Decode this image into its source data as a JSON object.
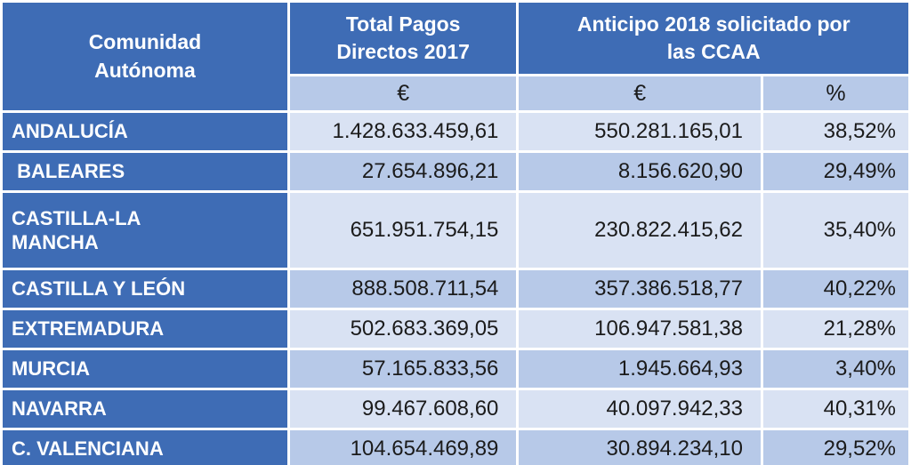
{
  "table": {
    "header": {
      "comunidad": "Comunidad\nAutónoma",
      "total_pagos": "Total Pagos\nDirectos 2017",
      "anticipo": "Anticipo 2018 solicitado por\nlas CCAA"
    },
    "subheader": [
      "€",
      "€",
      "%"
    ],
    "rows": [
      {
        "name": "ANDALUCÍA",
        "total_2017": "1.428.633.459,61",
        "anticipo_2018": "550.281.165,01",
        "pct": "38,52%"
      },
      {
        "name": " BALEARES",
        "total_2017": "27.654.896,21",
        "anticipo_2018": "8.156.620,90",
        "pct": "29,49%"
      },
      {
        "name": "CASTILLA-LA\nMANCHA",
        "total_2017": "651.951.754,15",
        "anticipo_2018": "230.822.415,62",
        "pct": "35,40%"
      },
      {
        "name": "CASTILLA Y LEÓN",
        "total_2017": "888.508.711,54",
        "anticipo_2018": "357.386.518,77",
        "pct": "40,22%"
      },
      {
        "name": "EXTREMADURA",
        "total_2017": "502.683.369,05",
        "anticipo_2018": "106.947.581,38",
        "pct": "21,28%"
      },
      {
        "name": "MURCIA",
        "total_2017": "57.165.833,56",
        "anticipo_2018": "1.945.664,93",
        "pct": "3,40%"
      },
      {
        "name": "NAVARRA",
        "total_2017": "99.467.608,60",
        "anticipo_2018": "40.097.942,33",
        "pct": "40,31%"
      },
      {
        "name": "C. VALENCIANA",
        "total_2017": "104.654.469,89",
        "anticipo_2018": "30.894.234,10",
        "pct": "29,52%"
      }
    ]
  },
  "colors": {
    "header_blue": "#3e6cb5",
    "band_light": "#d9e2f3",
    "band_medium": "#b7c9e8",
    "grid_white": "#ffffff",
    "value_text": "#1b1b1b",
    "header_text": "#ffffff"
  },
  "chart_data": {
    "type": "table",
    "columns": [
      "Comunidad Autónoma",
      "Total Pagos Directos 2017 (€)",
      "Anticipo 2018 solicitado por las CCAA (€)",
      "Anticipo 2018 solicitado por las CCAA (%)"
    ],
    "rows": [
      [
        "ANDALUCÍA",
        "1.428.633.459,61",
        "550.281.165,01",
        "38,52%"
      ],
      [
        "BALEARES",
        "27.654.896,21",
        "8.156.620,90",
        "29,49%"
      ],
      [
        "CASTILLA-LA MANCHA",
        "651.951.754,15",
        "230.822.415,62",
        "35,40%"
      ],
      [
        "CASTILLA Y LEÓN",
        "888.508.711,54",
        "357.386.518,77",
        "40,22%"
      ],
      [
        "EXTREMADURA",
        "502.683.369,05",
        "106.947.581,38",
        "21,28%"
      ],
      [
        "MURCIA",
        "57.165.833,56",
        "1.945.664,93",
        "3,40%"
      ],
      [
        "NAVARRA",
        "99.467.608,60",
        "40.097.942,33",
        "40,31%"
      ],
      [
        "C. VALENCIANA",
        "104.654.469,89",
        "30.894.234,10",
        "29,52%"
      ]
    ],
    "numeric_rows": [
      {
        "name": "ANDALUCÍA",
        "total_2017": 1428633459.61,
        "anticipo_2018": 550281165.01,
        "pct": 38.52
      },
      {
        "name": "BALEARES",
        "total_2017": 27654896.21,
        "anticipo_2018": 8156620.9,
        "pct": 29.49
      },
      {
        "name": "CASTILLA-LA MANCHA",
        "total_2017": 651951754.15,
        "anticipo_2018": 230822415.62,
        "pct": 35.4
      },
      {
        "name": "CASTILLA Y LEÓN",
        "total_2017": 888508711.54,
        "anticipo_2018": 357386518.77,
        "pct": 40.22
      },
      {
        "name": "EXTREMADURA",
        "total_2017": 502683369.05,
        "anticipo_2018": 106947581.38,
        "pct": 21.28
      },
      {
        "name": "MURCIA",
        "total_2017": 57165833.56,
        "anticipo_2018": 1945664.93,
        "pct": 3.4
      },
      {
        "name": "NAVARRA",
        "total_2017": 99467608.6,
        "anticipo_2018": 40097942.33,
        "pct": 40.31
      },
      {
        "name": "C. VALENCIANA",
        "total_2017": 104654469.89,
        "anticipo_2018": 30894234.1,
        "pct": 29.52
      }
    ]
  }
}
